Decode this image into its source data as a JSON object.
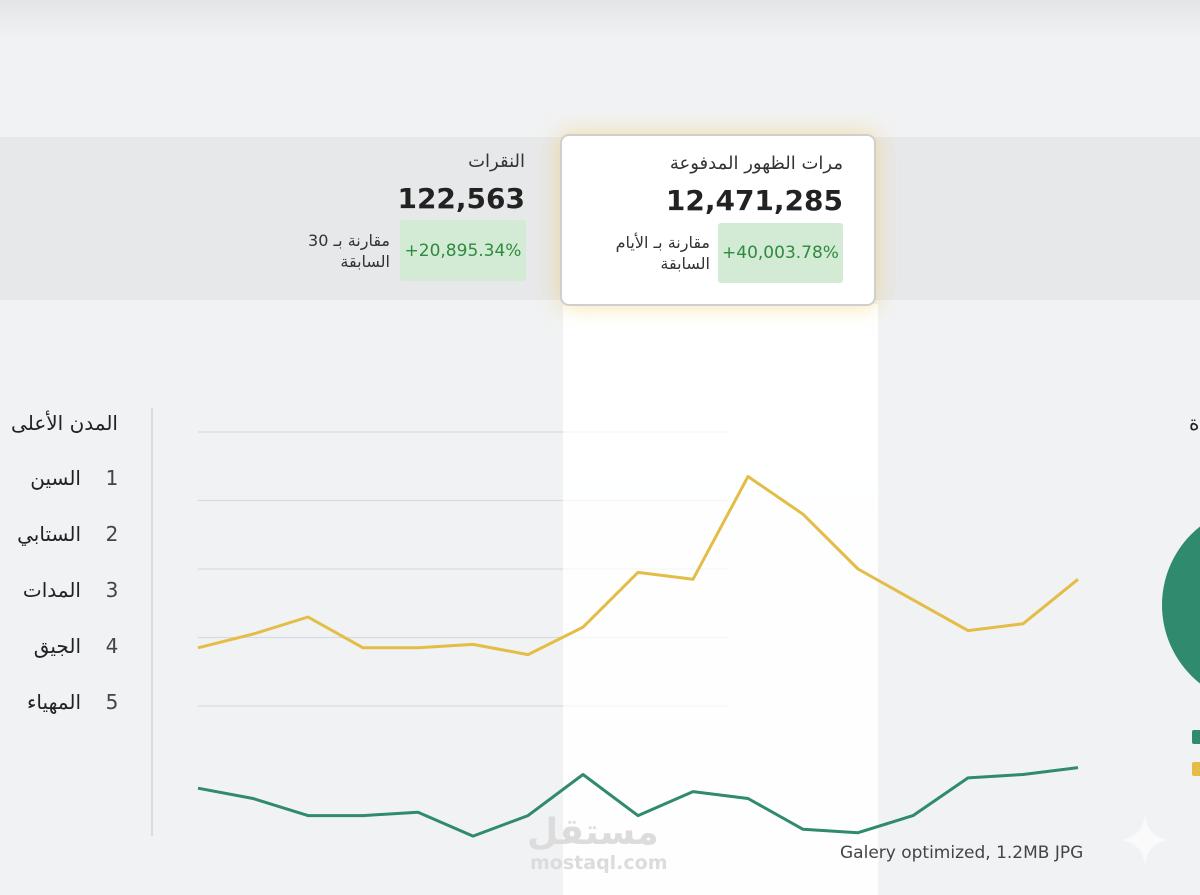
{
  "kpis": [
    {
      "title": "مرات الظهور المدفوعة",
      "value": "12,471,285",
      "comparison": "مقارنة بـ الأيام السابقة",
      "change": "+40,003.78%"
    },
    {
      "title": "النقرات",
      "value": "122,563",
      "comparison": "مقارنة بـ 30 السابقة",
      "change": "+20,895.34%"
    }
  ],
  "top_cities": {
    "title": "المدن الأعلى",
    "items": [
      {
        "rank": 1,
        "name": "السين"
      },
      {
        "rank": 2,
        "name": "الستابي"
      },
      {
        "rank": 3,
        "name": "المدات"
      },
      {
        "rank": 4,
        "name": "الجيق"
      },
      {
        "rank": 5,
        "name": "المهياء"
      }
    ]
  },
  "pie_title": "ة",
  "watermark": {
    "logo": "مستقل",
    "url": "mostaql.com"
  },
  "caption": "Galery optimized, 1.2MB JPG",
  "chart_data": {
    "type": "line",
    "series": [
      {
        "color": "#e3bd45",
        "values": [
          37,
          41,
          46,
          37,
          37,
          38,
          35,
          43,
          59,
          57,
          87,
          76,
          60,
          51,
          42,
          44,
          57
        ]
      },
      {
        "color": "#2f8a6e",
        "values": [
          -4,
          -7,
          -12,
          -12,
          -11,
          -18,
          -12,
          0,
          -12,
          -5,
          -7,
          -16,
          -17,
          -12,
          -1,
          0,
          2
        ]
      }
    ],
    "ylim": [
      -20,
      100
    ],
    "yticks": [
      20,
      40,
      60,
      80,
      100
    ],
    "grid": true
  }
}
